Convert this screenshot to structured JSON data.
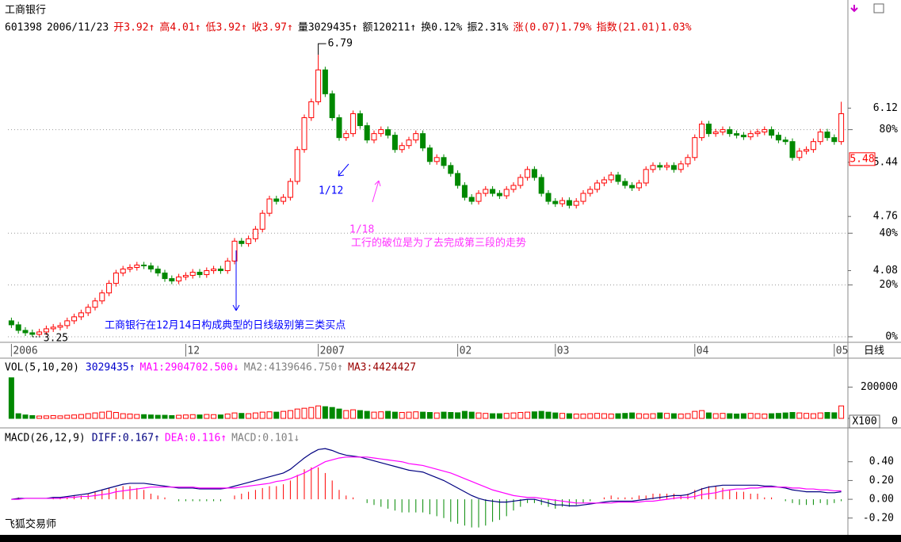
{
  "chart_data": [
    {
      "type": "candlestick",
      "title": "工商银行",
      "info": [
        {
          "text": "601398",
          "color": "#000000"
        },
        {
          "text": "2006/11/23",
          "color": "#000000"
        },
        {
          "text": "开3.92↑",
          "color": "#e00000"
        },
        {
          "text": "高4.01↑",
          "color": "#e00000"
        },
        {
          "text": "低3.92↑",
          "color": "#e00000"
        },
        {
          "text": "收3.97↑",
          "color": "#e00000"
        },
        {
          "text": "量3029435↑",
          "color": "#000000"
        },
        {
          "text": "额120211↑",
          "color": "#000000"
        },
        {
          "text": "换0.12%",
          "color": "#000000"
        },
        {
          "text": "振2.31%",
          "color": "#000000"
        },
        {
          "text": "涨(0.07)1.79%",
          "color": "#e00000"
        },
        {
          "text": "指数(21.01)1.03%",
          "color": "#e00000"
        }
      ],
      "open": [
        3.45,
        3.4,
        3.33,
        3.3,
        3.28,
        3.31,
        3.35,
        3.37,
        3.39,
        3.45,
        3.5,
        3.55,
        3.62,
        3.7,
        3.8,
        3.92,
        4.05,
        4.1,
        4.12,
        4.15,
        4.14,
        4.1,
        4.05,
        3.98,
        3.95,
        4.0,
        4.02,
        4.06,
        4.03,
        4.08,
        4.1,
        4.08,
        4.2,
        4.45,
        4.42,
        4.48,
        4.6,
        4.8,
        4.98,
        4.95,
        5.0,
        5.2,
        5.6,
        6.0,
        6.2,
        6.6,
        6.3,
        6.0,
        5.75,
        5.8,
        6.05,
        5.9,
        5.72,
        5.8,
        5.85,
        5.78,
        5.6,
        5.65,
        5.72,
        5.8,
        5.62,
        5.45,
        5.5,
        5.4,
        5.3,
        5.15,
        5.0,
        4.95,
        5.05,
        5.1,
        5.05,
        5.02,
        5.1,
        5.15,
        5.25,
        5.35,
        5.25,
        5.05,
        4.95,
        4.92,
        4.96,
        4.9,
        4.95,
        5.05,
        5.1,
        5.18,
        5.22,
        5.28,
        5.2,
        5.15,
        5.12,
        5.18,
        5.35,
        5.4,
        5.38,
        5.4,
        5.35,
        5.42,
        5.5,
        5.75,
        5.92,
        5.8,
        5.82,
        5.85,
        5.8,
        5.78,
        5.76,
        5.8,
        5.82,
        5.85,
        5.78,
        5.72,
        5.7,
        5.5,
        5.58,
        5.6,
        5.7,
        5.82,
        5.75,
        5.7
      ],
      "high": [
        3.49,
        3.44,
        3.37,
        3.34,
        3.35,
        3.39,
        3.41,
        3.43,
        3.49,
        3.54,
        3.59,
        3.66,
        3.74,
        3.84,
        3.96,
        4.09,
        4.14,
        4.16,
        4.19,
        4.19,
        4.18,
        4.14,
        4.09,
        4.02,
        4.04,
        4.06,
        4.1,
        4.1,
        4.12,
        4.14,
        4.14,
        4.24,
        4.49,
        4.49,
        4.52,
        4.64,
        4.84,
        5.02,
        5.02,
        5.04,
        5.24,
        5.64,
        6.04,
        6.24,
        6.79,
        6.64,
        6.34,
        6.04,
        5.84,
        6.09,
        6.09,
        5.94,
        5.84,
        5.89,
        5.89,
        5.82,
        5.69,
        5.76,
        5.84,
        5.84,
        5.66,
        5.54,
        5.54,
        5.44,
        5.34,
        5.19,
        5.04,
        5.09,
        5.14,
        5.14,
        5.09,
        5.14,
        5.19,
        5.29,
        5.39,
        5.39,
        5.29,
        5.09,
        4.99,
        5.0,
        5.0,
        4.99,
        5.09,
        5.14,
        5.22,
        5.26,
        5.32,
        5.32,
        5.24,
        5.19,
        5.22,
        5.39,
        5.44,
        5.44,
        5.44,
        5.44,
        5.46,
        5.54,
        5.79,
        5.96,
        5.96,
        5.86,
        5.89,
        5.89,
        5.84,
        5.82,
        5.84,
        5.86,
        5.89,
        5.89,
        5.82,
        5.76,
        5.74,
        5.62,
        5.64,
        5.74,
        5.86,
        5.86,
        5.79,
        6.2
      ],
      "low": [
        3.36,
        3.29,
        3.26,
        3.25,
        3.26,
        3.27,
        3.31,
        3.33,
        3.35,
        3.41,
        3.46,
        3.51,
        3.58,
        3.66,
        3.76,
        3.88,
        4.01,
        4.06,
        4.08,
        4.1,
        4.06,
        4.01,
        3.94,
        3.91,
        3.91,
        3.96,
        3.98,
        3.99,
        3.99,
        4.04,
        4.04,
        4.04,
        4.16,
        4.38,
        4.38,
        4.44,
        4.56,
        4.76,
        4.91,
        4.91,
        4.96,
        5.16,
        5.56,
        5.96,
        6.16,
        6.26,
        5.96,
        5.71,
        5.71,
        5.76,
        5.86,
        5.68,
        5.68,
        5.76,
        5.74,
        5.56,
        5.56,
        5.61,
        5.68,
        5.58,
        5.41,
        5.41,
        5.36,
        5.26,
        5.11,
        4.96,
        4.91,
        4.91,
        5.01,
        5.01,
        4.98,
        4.98,
        5.06,
        5.11,
        5.21,
        5.21,
        5.01,
        4.91,
        4.88,
        4.88,
        4.86,
        4.86,
        4.91,
        5.01,
        5.06,
        5.14,
        5.18,
        5.16,
        5.11,
        5.08,
        5.08,
        5.14,
        5.31,
        5.34,
        5.34,
        5.31,
        5.31,
        5.38,
        5.46,
        5.71,
        5.76,
        5.76,
        5.78,
        5.76,
        5.74,
        5.72,
        5.72,
        5.76,
        5.78,
        5.74,
        5.68,
        5.66,
        5.46,
        5.46,
        5.54,
        5.56,
        5.66,
        5.71,
        5.66,
        5.66
      ],
      "close": [
        3.4,
        3.33,
        3.3,
        3.28,
        3.31,
        3.35,
        3.37,
        3.39,
        3.45,
        3.5,
        3.55,
        3.62,
        3.7,
        3.8,
        3.92,
        4.05,
        4.1,
        4.12,
        4.15,
        4.14,
        4.1,
        4.05,
        3.98,
        3.95,
        4.0,
        4.02,
        4.06,
        4.03,
        4.08,
        4.1,
        4.08,
        4.2,
        4.45,
        4.42,
        4.48,
        4.6,
        4.8,
        4.98,
        4.95,
        5.0,
        5.2,
        5.6,
        6.0,
        6.2,
        6.6,
        6.3,
        6.0,
        5.75,
        5.8,
        6.05,
        5.9,
        5.72,
        5.8,
        5.85,
        5.78,
        5.6,
        5.65,
        5.72,
        5.8,
        5.62,
        5.45,
        5.5,
        5.4,
        5.3,
        5.15,
        5.0,
        4.95,
        5.05,
        5.1,
        5.05,
        5.02,
        5.1,
        5.15,
        5.25,
        5.35,
        5.25,
        5.05,
        4.95,
        4.92,
        4.96,
        4.9,
        4.95,
        5.05,
        5.1,
        5.18,
        5.22,
        5.28,
        5.2,
        5.15,
        5.12,
        5.18,
        5.35,
        5.4,
        5.38,
        5.4,
        5.35,
        5.42,
        5.5,
        5.75,
        5.92,
        5.8,
        5.82,
        5.85,
        5.8,
        5.78,
        5.76,
        5.8,
        5.82,
        5.85,
        5.78,
        5.72,
        5.7,
        5.5,
        5.58,
        5.6,
        5.7,
        5.82,
        5.75,
        5.7,
        6.05
      ],
      "up_color": "#ff0000",
      "down_color": "#008800",
      "xlim": [
        -0.5,
        119.5
      ],
      "xticks": [
        {
          "value": 0,
          "label": "2006"
        },
        {
          "value": 25,
          "label": "12"
        },
        {
          "value": 44,
          "label": "2007"
        },
        {
          "value": 64,
          "label": "02"
        },
        {
          "value": 78,
          "label": "03"
        },
        {
          "value": 98,
          "label": "04"
        },
        {
          "value": 118,
          "label": "05"
        }
      ],
      "period_label": "日线",
      "ylim": [
        3.2,
        7.0
      ],
      "yticks": [
        {
          "value": 3.25,
          "label": "0%"
        },
        {
          "value": 3.9,
          "label": "20%"
        },
        {
          "value": 4.55,
          "label": "40%"
        },
        {
          "value": 5.85,
          "label": "80%"
        }
      ],
      "y2lim": [
        3.2,
        7.0
      ],
      "y2ticks": [
        4.08,
        4.76,
        5.44,
        6.12
      ],
      "price_marker": 5.48,
      "grid": true,
      "annotations": [
        {
          "text": "1/12",
          "color": "#0000ff"
        },
        {
          "text": "1/18",
          "color": "#ff33ff"
        },
        {
          "text": "工行的破位是为了去完成第三段的走势",
          "color": "#ff33ff"
        },
        {
          "text": "工商银行在12月14日构成典型的日线级别第三类买点",
          "color": "#0000ff"
        }
      ],
      "footer": "飞狐交易师"
    },
    {
      "type": "bar",
      "title": "VOL(5,10,20)",
      "info": [
        {
          "text": "3029435↑",
          "color": "#0000cc"
        },
        {
          "text": "MA1:2904702.500↓",
          "color": "#ff00ff"
        },
        {
          "text": "MA2:4139646.750↑",
          "color": "#808080"
        },
        {
          "text": "MA3:4424427",
          "color": "#990000"
        }
      ],
      "values": [
        260000,
        30000,
        22000,
        18000,
        15000,
        16000,
        18000,
        16000,
        20000,
        22000,
        25000,
        30000,
        35000,
        40000,
        45000,
        38000,
        30000,
        28000,
        25000,
        24000,
        22000,
        20000,
        20000,
        18000,
        20000,
        22000,
        24000,
        22000,
        25000,
        24000,
        22000,
        28000,
        35000,
        32000,
        30000,
        35000,
        40000,
        42000,
        40000,
        45000,
        50000,
        60000,
        65000,
        70000,
        80000,
        75000,
        70000,
        60000,
        50000,
        55000,
        50000,
        45000,
        40000,
        42000,
        45000,
        40000,
        38000,
        40000,
        42000,
        40000,
        38000,
        35000,
        40000,
        38000,
        36000,
        45000,
        40000,
        35000,
        32000,
        30000,
        30000,
        32000,
        35000,
        38000,
        40000,
        42000,
        45000,
        40000,
        35000,
        32000,
        30000,
        28000,
        28000,
        30000,
        32000,
        30000,
        28000,
        30000,
        32000,
        35000,
        30000,
        28000,
        30000,
        35000,
        32000,
        30000,
        28000,
        30000,
        45000,
        50000,
        35000,
        30000,
        32000,
        30000,
        28000,
        30000,
        32000,
        30000,
        28000,
        30000,
        32000,
        35000,
        38000,
        35000,
        32000,
        30000,
        35000,
        38000,
        36000,
        80000
      ],
      "ylim": [
        0,
        340000
      ],
      "yticks": [
        0,
        200000
      ],
      "unit_label": "X100"
    },
    {
      "type": "macd",
      "title": "MACD(26,12,9)",
      "series": [
        {
          "name": "DIFF:0.167↑",
          "color": "#000080",
          "values": [
            0,
            0.01,
            0.01,
            0.01,
            0.01,
            0.01,
            0.02,
            0.02,
            0.03,
            0.04,
            0.05,
            0.06,
            0.08,
            0.1,
            0.12,
            0.14,
            0.16,
            0.17,
            0.17,
            0.17,
            0.16,
            0.15,
            0.14,
            0.13,
            0.12,
            0.12,
            0.12,
            0.11,
            0.11,
            0.11,
            0.11,
            0.12,
            0.14,
            0.16,
            0.18,
            0.2,
            0.22,
            0.24,
            0.26,
            0.28,
            0.32,
            0.38,
            0.44,
            0.49,
            0.53,
            0.54,
            0.52,
            0.49,
            0.47,
            0.46,
            0.45,
            0.43,
            0.41,
            0.39,
            0.37,
            0.35,
            0.33,
            0.31,
            0.3,
            0.29,
            0.26,
            0.23,
            0.2,
            0.16,
            0.12,
            0.08,
            0.04,
            0.01,
            -0.01,
            -0.02,
            -0.03,
            -0.03,
            -0.02,
            -0.01,
            0.0,
            0.0,
            -0.02,
            -0.04,
            -0.06,
            -0.06,
            -0.07,
            -0.07,
            -0.06,
            -0.05,
            -0.04,
            -0.03,
            -0.02,
            -0.02,
            -0.02,
            -0.02,
            -0.01,
            0.0,
            0.01,
            0.02,
            0.03,
            0.04,
            0.04,
            0.05,
            0.08,
            0.11,
            0.13,
            0.14,
            0.15,
            0.15,
            0.15,
            0.15,
            0.15,
            0.15,
            0.14,
            0.14,
            0.13,
            0.12,
            0.1,
            0.09,
            0.08,
            0.08,
            0.08,
            0.07,
            0.07,
            0.08
          ]
        },
        {
          "name": "DEA:0.116↑",
          "color": "#ff00ff",
          "values": [
            0,
            0,
            0.01,
            0.01,
            0.01,
            0.01,
            0.01,
            0.01,
            0.02,
            0.02,
            0.03,
            0.03,
            0.04,
            0.05,
            0.06,
            0.08,
            0.09,
            0.1,
            0.11,
            0.12,
            0.13,
            0.13,
            0.13,
            0.13,
            0.13,
            0.13,
            0.13,
            0.12,
            0.12,
            0.12,
            0.12,
            0.12,
            0.12,
            0.13,
            0.14,
            0.15,
            0.16,
            0.17,
            0.19,
            0.2,
            0.22,
            0.25,
            0.28,
            0.32,
            0.36,
            0.4,
            0.42,
            0.44,
            0.45,
            0.45,
            0.45,
            0.45,
            0.44,
            0.43,
            0.42,
            0.41,
            0.4,
            0.38,
            0.37,
            0.36,
            0.34,
            0.32,
            0.3,
            0.28,
            0.25,
            0.22,
            0.19,
            0.16,
            0.13,
            0.1,
            0.08,
            0.06,
            0.04,
            0.03,
            0.02,
            0.02,
            0.01,
            0.0,
            -0.01,
            -0.02,
            -0.03,
            -0.04,
            -0.04,
            -0.04,
            -0.04,
            -0.04,
            -0.04,
            -0.03,
            -0.03,
            -0.03,
            -0.03,
            -0.02,
            -0.02,
            -0.01,
            0.0,
            0.01,
            0.02,
            0.02,
            0.03,
            0.05,
            0.06,
            0.07,
            0.09,
            0.1,
            0.11,
            0.11,
            0.12,
            0.12,
            0.13,
            0.13,
            0.13,
            0.13,
            0.12,
            0.12,
            0.11,
            0.11,
            0.1,
            0.1,
            0.09,
            0.09
          ]
        },
        {
          "name": "MACD:0.101↓",
          "color": "#808080",
          "values": [
            0,
            0.02,
            0,
            0,
            0,
            0,
            0.02,
            0.02,
            0.02,
            0.04,
            0.04,
            0.06,
            0.08,
            0.1,
            0.12,
            0.12,
            0.14,
            0.14,
            0.12,
            0.1,
            0.06,
            0.04,
            0.02,
            0,
            -0.02,
            -0.02,
            -0.02,
            -0.02,
            -0.02,
            -0.02,
            -0.02,
            0,
            0.04,
            0.06,
            0.08,
            0.1,
            0.12,
            0.14,
            0.14,
            0.16,
            0.2,
            0.26,
            0.32,
            0.34,
            0.34,
            0.28,
            0.2,
            0.1,
            0.04,
            0.02,
            0,
            -0.04,
            -0.06,
            -0.08,
            -0.1,
            -0.12,
            -0.14,
            -0.14,
            -0.14,
            -0.14,
            -0.16,
            -0.18,
            -0.2,
            -0.24,
            -0.26,
            -0.28,
            -0.3,
            -0.3,
            -0.28,
            -0.24,
            -0.22,
            -0.18,
            -0.12,
            -0.08,
            -0.04,
            -0.04,
            -0.06,
            -0.08,
            -0.1,
            -0.08,
            -0.08,
            -0.06,
            -0.04,
            -0.02,
            0,
            0.02,
            0.04,
            0.02,
            0.02,
            0.02,
            0.04,
            0.04,
            0.06,
            0.06,
            0.06,
            0.06,
            0.04,
            0.06,
            0.1,
            0.12,
            0.14,
            0.14,
            0.12,
            0.1,
            0.08,
            0.08,
            0.06,
            0.06,
            0.02,
            0.02,
            0,
            -0.02,
            -0.04,
            -0.06,
            -0.06,
            -0.06,
            -0.04,
            -0.06,
            -0.04,
            -0.02
          ]
        }
      ],
      "up_color": "#ff0000",
      "down_color": "#008800",
      "ylim": [
        -0.32,
        0.71
      ],
      "yticks": [
        {
          "value": 0.4,
          "label": "0.40"
        },
        {
          "value": 0.2,
          "label": "0.20"
        },
        {
          "value": 0,
          "label": "0.00"
        },
        {
          "value": -0.2,
          "label": "-0.20"
        }
      ]
    }
  ]
}
